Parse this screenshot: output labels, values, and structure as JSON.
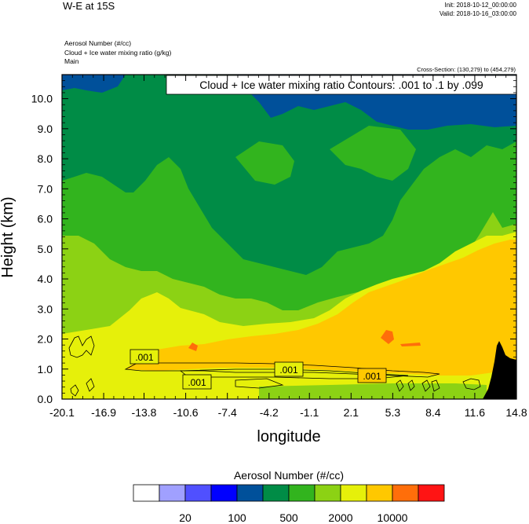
{
  "header": {
    "title": "W-E at 15S",
    "init": "Init: 2018-10-12_00:00:00",
    "valid": "Valid: 2018-10-16_03:00:00",
    "field1": "Aerosol Number   (#/cc)",
    "field2": "Cloud + Ice water mixing ratio   (g/kg)",
    "field3": "Main",
    "cross_section": "Cross-Section: (130,279) to (454,279)"
  },
  "contour_info": "Cloud + Ice water mixing ratio Contours: .001 to .1 by .099",
  "chart_data": {
    "type": "heatmap",
    "title": "W-E at 15S",
    "xlabel": "longitude",
    "ylabel": "Height (km)",
    "xticks": [
      "-20.1",
      "-16.9",
      "-13.8",
      "-10.6",
      "-7.4",
      "-4.2",
      "-1.1",
      "2.1",
      "5.3",
      "8.4",
      "11.6",
      "14.8"
    ],
    "yticks": [
      "0.0",
      "1.0",
      "2.0",
      "3.0",
      "4.0",
      "5.0",
      "6.0",
      "7.0",
      "8.0",
      "9.0",
      "10.0"
    ],
    "xlim": [
      -20.1,
      14.8
    ],
    "ylim": [
      0.0,
      10.8
    ],
    "colorbar": {
      "title": "Aerosol Number  (#/cc)",
      "colors": [
        "#ffffff",
        "#a0a0ff",
        "#5050ff",
        "#0000ff",
        "#00509a",
        "#008c46",
        "#32b41e",
        "#8cd214",
        "#e6f00a",
        "#ffc800",
        "#ff6e0a",
        "#ff1414"
      ],
      "labels": [
        "20",
        "100",
        "500",
        "2000",
        "10000"
      ]
    },
    "contour_labels": [
      ".001",
      ".001",
      ".001",
      ".001"
    ],
    "terrain_color": "#000000"
  }
}
